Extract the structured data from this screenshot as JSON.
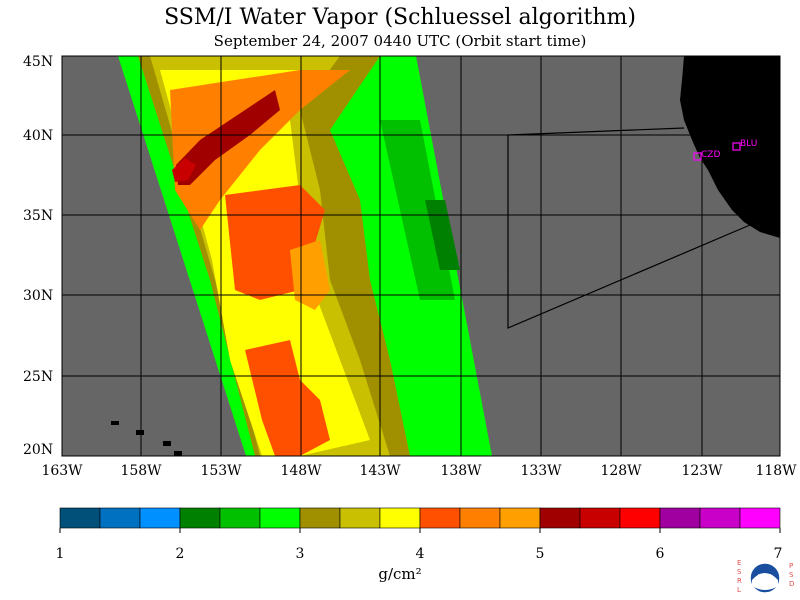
{
  "title": "SSM/I Water Vapor (Schluessel algorithm)",
  "subtitle": "September 24, 2007  0440 UTC  (Orbit start time)",
  "lat_labels": [
    "45N",
    "40N",
    "35N",
    "30N",
    "25N",
    "20N"
  ],
  "lon_labels": [
    "163W",
    "158W",
    "153W",
    "148W",
    "143W",
    "138W",
    "133W",
    "128W",
    "123W",
    "118W"
  ],
  "sites": [
    {
      "label": "BLU"
    },
    {
      "label": "CZD"
    }
  ],
  "colorbar": {
    "ticks": [
      "1",
      "2",
      "3",
      "4",
      "5",
      "6",
      "7"
    ],
    "unit": "g/cm²",
    "colors": [
      "#00507a",
      "#0070c0",
      "#0090ff",
      "#008000",
      "#00c000",
      "#00ff00",
      "#a09000",
      "#c8c000",
      "#ffff00",
      "#ff5000",
      "#ff8000",
      "#ffa000",
      "#a00000",
      "#c80000",
      "#ff0000",
      "#a000a0",
      "#c800c8",
      "#ff00ff"
    ]
  },
  "logo": {
    "left_text": "ESRL",
    "right_text": "PSD",
    "center_text": "NOAA"
  },
  "colors": {
    "ocean_no_data": "#666666",
    "land": "#000000",
    "site_marker": "#ff00ff"
  }
}
